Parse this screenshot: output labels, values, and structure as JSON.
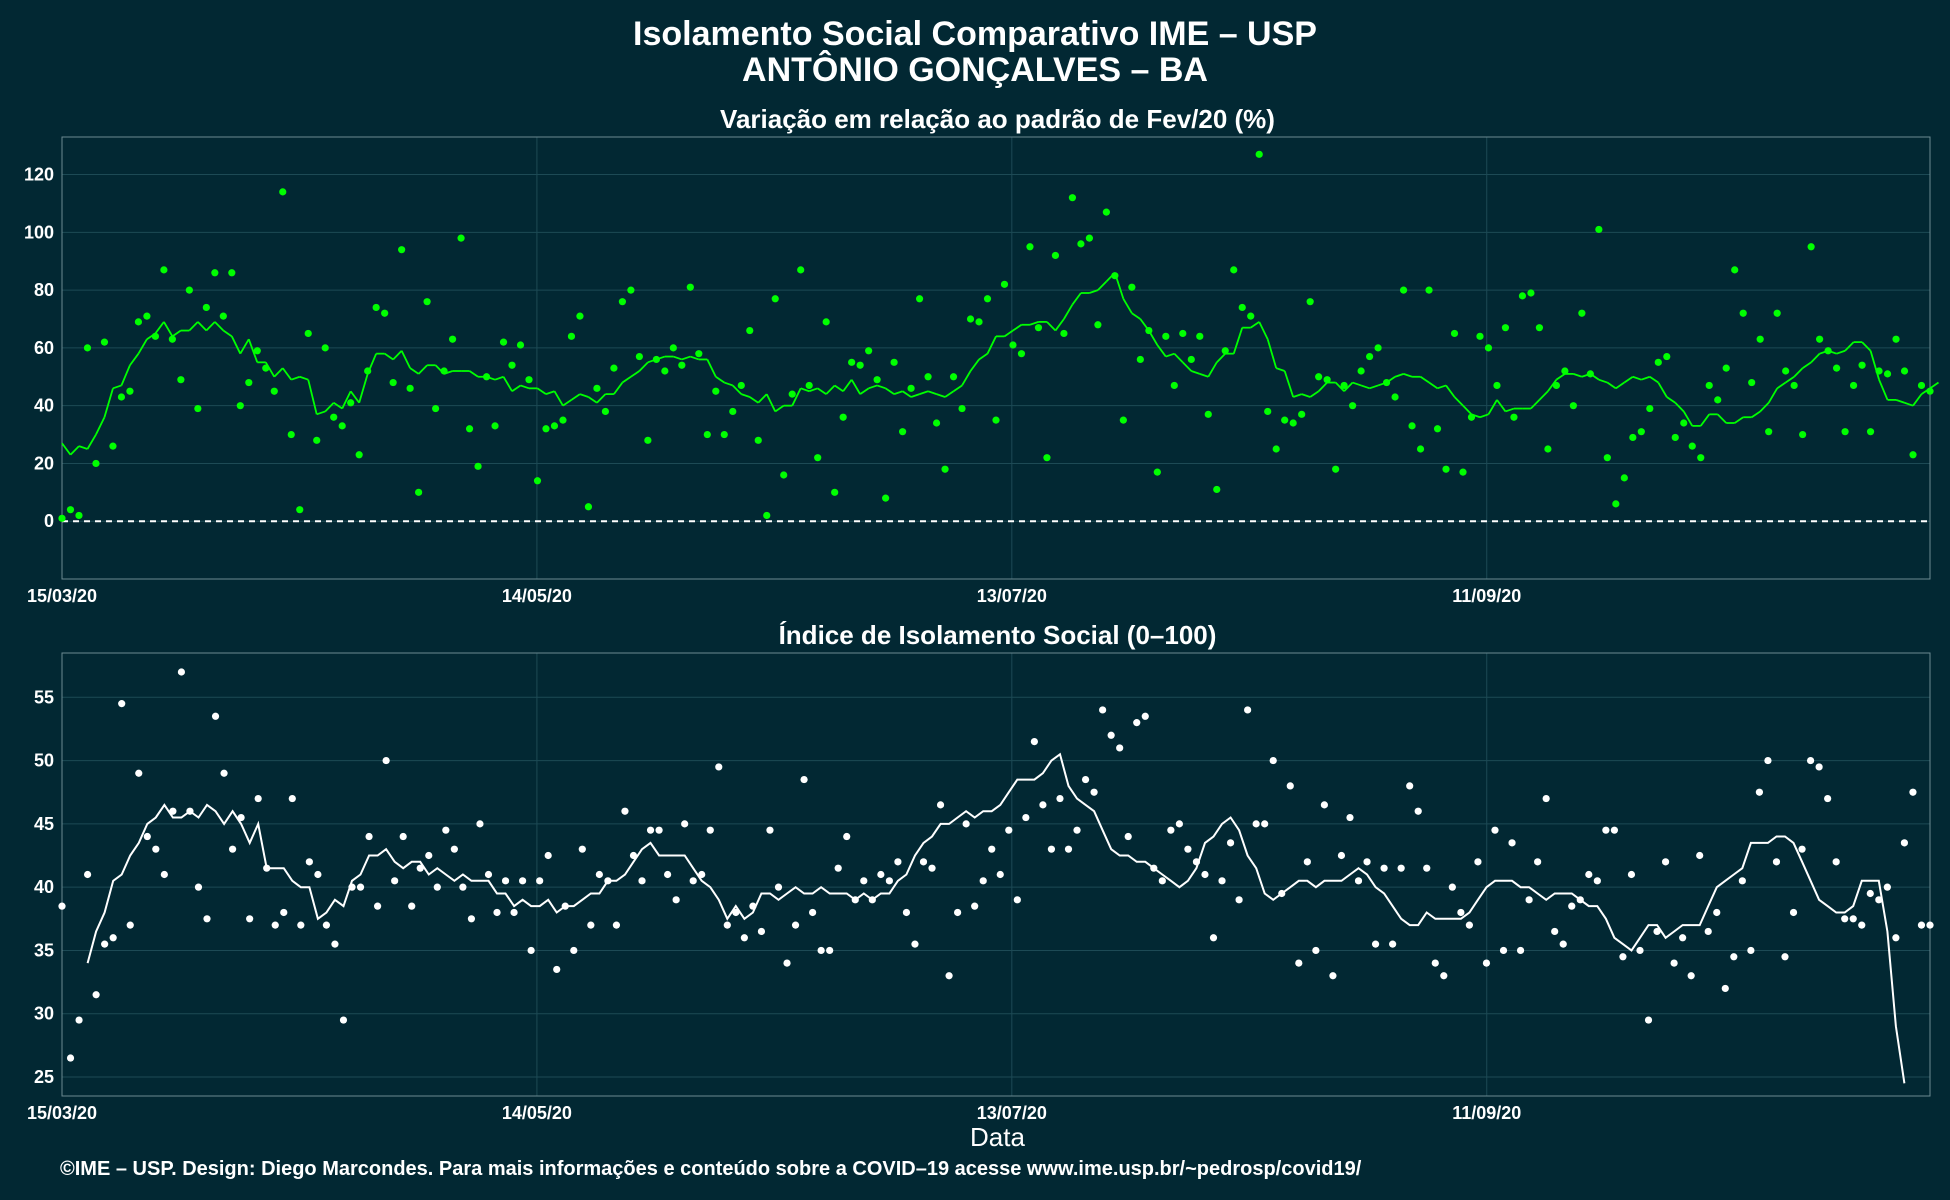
{
  "title_line1": "Isolamento Social Comparativo IME – USP",
  "title_line2": "ANTÔNIO GONÇALVES – BA",
  "footer": "©IME – USP. Design: Diego Marcondes. Para mais informações e conteúdo sobre a COVID–19 acesse www.ime.usp.br/~pedrosp/covid19/",
  "colors": {
    "background": "#022833",
    "green": "#00ff00",
    "red": "#ff0000",
    "white": "#ffffff",
    "grid": "#1d4a55"
  },
  "chart_data": [
    {
      "type": "scatter",
      "title": "Variação em relação ao padrão de Fev/20 (%)",
      "x_ticks": [
        "15/03/20",
        "14/05/20",
        "13/07/20",
        "11/09/20"
      ],
      "x_start": "15/03/20",
      "x_end": "06/11/20",
      "ylim": [
        -20,
        133
      ],
      "y_ticks": [
        0,
        20,
        40,
        60,
        80,
        100,
        120
      ],
      "reference_line": 0,
      "grid": true,
      "series": [
        {
          "values": [
            1,
            4,
            2,
            60,
            20,
            62,
            26,
            43,
            45,
            69,
            71,
            64,
            87,
            63,
            49,
            80,
            39,
            74,
            86,
            71,
            86,
            40,
            48,
            59,
            53,
            45,
            114,
            30,
            4,
            65,
            28,
            60,
            36,
            33,
            41,
            23,
            52,
            74,
            72,
            48,
            94,
            46,
            10,
            76,
            39,
            52,
            63,
            98,
            32,
            19,
            50,
            33,
            62,
            54,
            61,
            49,
            14,
            32,
            33,
            35,
            64,
            71,
            5,
            46,
            38,
            53,
            76,
            80,
            57,
            28,
            56,
            52,
            60,
            54,
            81,
            58,
            30,
            45,
            30,
            38,
            47,
            66,
            28,
            2,
            77,
            16,
            44,
            87,
            47,
            22,
            69,
            10,
            36,
            55,
            54,
            59,
            49,
            8,
            55,
            31,
            46,
            77,
            50,
            34,
            18,
            50,
            39,
            70,
            69,
            77,
            35,
            82,
            61,
            58,
            95,
            67,
            22,
            92,
            65,
            112,
            96,
            98,
            68,
            107,
            85,
            35,
            81,
            56,
            66,
            17,
            64,
            47,
            65,
            56,
            64,
            37,
            11,
            59,
            87,
            74,
            71,
            127,
            38,
            25,
            35,
            34,
            37,
            76,
            50,
            49,
            18,
            47,
            40,
            52,
            57,
            60,
            48,
            43,
            80,
            33,
            25,
            80,
            32,
            18,
            65,
            17,
            36,
            64,
            60,
            47,
            67,
            36,
            78,
            79,
            67,
            25,
            47,
            52,
            40,
            72,
            51,
            101,
            22,
            6,
            15,
            29,
            31,
            39,
            55,
            57,
            29,
            34,
            26,
            22,
            47,
            42,
            53,
            87,
            72,
            48,
            63,
            31,
            72,
            52,
            47,
            30,
            95,
            63,
            59,
            53,
            31,
            47,
            54,
            31,
            52,
            51,
            63,
            52,
            23,
            47,
            45
          ]
        },
        {
          "values": [
            27,
            23,
            26,
            25,
            30,
            36,
            46,
            47,
            54,
            58,
            63,
            65,
            69,
            64,
            66,
            66,
            69,
            66,
            69,
            66,
            64,
            58,
            63,
            55,
            55,
            50,
            53,
            49,
            50,
            49,
            37,
            38,
            41,
            39,
            45,
            41,
            51,
            58,
            58,
            56,
            59,
            53,
            51,
            54,
            54,
            51,
            52,
            52,
            52,
            50,
            50,
            49,
            50,
            45,
            47,
            46,
            46,
            44,
            45,
            40,
            42,
            44,
            43,
            41,
            44,
            44,
            48,
            50,
            52,
            55,
            56,
            57,
            57,
            56,
            57,
            56,
            56,
            50,
            48,
            47,
            44,
            43,
            41,
            44,
            38,
            40,
            40,
            46,
            45,
            46,
            44,
            47,
            45,
            49,
            44,
            46,
            47,
            46,
            44,
            45,
            43,
            44,
            45,
            44,
            43,
            45,
            47,
            52,
            56,
            58,
            64,
            64,
            66,
            68,
            68,
            69,
            69,
            66,
            70,
            75,
            79,
            79,
            80,
            83,
            86,
            77,
            72,
            70,
            66,
            61,
            57,
            58,
            55,
            52,
            51,
            50,
            55,
            58,
            58,
            67,
            67,
            69,
            63,
            53,
            52,
            43,
            44,
            43,
            45,
            48,
            48,
            45,
            48,
            47,
            46,
            47,
            48,
            50,
            51,
            50,
            50,
            48,
            46,
            47,
            43,
            40,
            37,
            36,
            37,
            42,
            38,
            39,
            39,
            39,
            42,
            45,
            49,
            51,
            51,
            50,
            51,
            49,
            48,
            46,
            48,
            50,
            49,
            50,
            48,
            43,
            41,
            38,
            33,
            33,
            37,
            37,
            34,
            34,
            36,
            36,
            38,
            41,
            46,
            48,
            50,
            53,
            55,
            58,
            59,
            58,
            59,
            62,
            62,
            59,
            49,
            42,
            42,
            41,
            40,
            44,
            46,
            48
          ]
        }
      ]
    },
    {
      "type": "scatter",
      "title": "Índice de Isolamento Social (0–100)",
      "x_ticks": [
        "15/03/20",
        "14/05/20",
        "13/07/20",
        "11/09/20"
      ],
      "x_start": "15/03/20",
      "x_end": "06/11/20",
      "xlabel": "Data",
      "ylim": [
        23.5,
        58.5
      ],
      "y_ticks": [
        25,
        30,
        35,
        40,
        45,
        50,
        55
      ],
      "grid": true,
      "series": [
        {
          "values": [
            38.5,
            26.5,
            29.5,
            41.0,
            31.5,
            35.5,
            36.0,
            54.5,
            37.0,
            49.0,
            44.0,
            43.0,
            41.0,
            46.0,
            57.0,
            46.0,
            40.0,
            37.5,
            53.5,
            49.0,
            43.0,
            45.5,
            37.5,
            47.0,
            41.5,
            37.0,
            38.0,
            47.0,
            37.0,
            42.0,
            41.0,
            37.0,
            35.5,
            29.5,
            40.0,
            40.0,
            44.0,
            38.5,
            50.0,
            40.5,
            44.0,
            38.5,
            41.5,
            42.5,
            40.0,
            44.5,
            43.0,
            40.0,
            37.5,
            45.0,
            41.0,
            38.0,
            40.5,
            38.0,
            40.5,
            35.0,
            40.5,
            42.5,
            33.5,
            38.5,
            35.0,
            43.0,
            37.0,
            41.0,
            40.5,
            37.0,
            46.0,
            42.5,
            40.5,
            44.5,
            44.5,
            41.0,
            39.0,
            45.0,
            40.5,
            41.0,
            44.5,
            49.5,
            37.0,
            38.0,
            36.0,
            38.5,
            36.5,
            44.5,
            40.0,
            34.0,
            37.0,
            48.5,
            38.0,
            35.0,
            35.0,
            41.5,
            44.0,
            39.0,
            40.5,
            39.0,
            41.0,
            40.5,
            42.0,
            38.0,
            35.5,
            42.0,
            41.5,
            46.5,
            33.0,
            38.0,
            45.0,
            38.5,
            40.5,
            43.0,
            41.0,
            44.5,
            39.0,
            45.5,
            51.5,
            46.5,
            43.0,
            47.0,
            43.0,
            44.5,
            48.5,
            47.5,
            54.0,
            52.0,
            51.0,
            44.0,
            53.0,
            53.5,
            41.5,
            40.5,
            44.5,
            45.0,
            43.0,
            42.0,
            41.0,
            36.0,
            40.5,
            43.5,
            39.0,
            54.0,
            45.0,
            45.0,
            50.0,
            39.5,
            48.0,
            34.0,
            42.0,
            35.0,
            46.5,
            33.0,
            42.5,
            45.5,
            40.5,
            42.0,
            35.5,
            41.5,
            35.5,
            41.5,
            48.0,
            46.0,
            41.5,
            34.0,
            33.0,
            40.0,
            38.0,
            37.0,
            42.0,
            34.0,
            44.5,
            35.0,
            43.5,
            35.0,
            39.0,
            42.0,
            47.0,
            36.5,
            35.5,
            38.5,
            39.0,
            41.0,
            40.5,
            44.5,
            44.5,
            34.5,
            41.0,
            35.0,
            29.5,
            36.5,
            42.0,
            34.0,
            36.0,
            33.0,
            42.5,
            36.5,
            38.0,
            32.0,
            34.5,
            40.5,
            35.0,
            47.5,
            50.0,
            42.0,
            34.5,
            38.0,
            43.0,
            50.0,
            49.5,
            47.0,
            42.0,
            37.5,
            37.5,
            37.0,
            39.5,
            39.0,
            40.0,
            36.0,
            43.5,
            47.5,
            37.0,
            37.0
          ]
        },
        {
          "values": [
            null,
            null,
            null,
            34.0,
            36.5,
            38.0,
            40.5,
            41.0,
            42.5,
            43.5,
            45.0,
            45.5,
            46.5,
            45.5,
            45.5,
            46.0,
            45.5,
            46.5,
            46.0,
            45.0,
            46.0,
            45.0,
            43.5,
            45.0,
            41.5,
            41.5,
            41.5,
            40.5,
            40.0,
            40.0,
            37.5,
            38.0,
            39.0,
            38.5,
            40.5,
            41.0,
            42.5,
            42.5,
            43.0,
            42.0,
            41.5,
            42.0,
            42.0,
            41.0,
            41.5,
            41.0,
            40.5,
            41.0,
            40.5,
            40.5,
            40.5,
            39.5,
            39.5,
            38.5,
            39.0,
            38.5,
            38.5,
            39.0,
            38.0,
            38.5,
            38.5,
            39.0,
            39.5,
            39.5,
            40.5,
            40.5,
            41.0,
            42.0,
            43.0,
            43.5,
            42.5,
            42.5,
            42.5,
            42.5,
            41.5,
            40.5,
            40.0,
            39.0,
            37.5,
            38.5,
            37.5,
            38.0,
            39.5,
            39.5,
            39.0,
            39.5,
            40.0,
            39.5,
            39.5,
            40.0,
            39.5,
            39.5,
            39.5,
            39.0,
            39.5,
            39.0,
            39.5,
            39.5,
            40.5,
            41.0,
            42.5,
            43.5,
            44.0,
            45.0,
            45.0,
            45.5,
            46.0,
            45.5,
            46.0,
            46.0,
            46.5,
            47.5,
            48.5,
            48.5,
            48.5,
            49.0,
            50.0,
            50.5,
            48.0,
            47.0,
            46.5,
            46.0,
            44.5,
            43.0,
            42.5,
            42.5,
            42.0,
            42.0,
            41.5,
            41.0,
            40.5,
            40.0,
            40.5,
            41.5,
            43.5,
            44.0,
            45.0,
            45.5,
            44.5,
            42.5,
            41.5,
            39.5,
            39.0,
            39.5,
            40.0,
            40.5,
            40.5,
            40.0,
            40.5,
            40.5,
            40.5,
            41.0,
            41.5,
            41.0,
            40.0,
            39.5,
            38.5,
            37.5,
            37.0,
            37.0,
            38.0,
            37.5,
            37.5,
            37.5,
            37.5,
            38.0,
            39.0,
            40.0,
            40.5,
            40.5,
            40.5,
            40.0,
            40.0,
            39.5,
            39.0,
            39.5,
            39.5,
            39.5,
            39.0,
            38.5,
            38.5,
            37.5,
            36.0,
            35.5,
            35.0,
            36.0,
            37.0,
            37.0,
            36.0,
            36.5,
            37.0,
            37.0,
            37.0,
            38.5,
            40.0,
            40.5,
            41.0,
            41.5,
            43.5,
            43.5,
            43.5,
            44.0,
            44.0,
            43.5,
            42.0,
            40.5,
            39.0,
            38.5,
            38.0,
            38.0,
            38.5,
            40.5,
            40.5,
            40.5,
            36.5,
            29.0,
            24.5
          ]
        }
      ]
    }
  ]
}
